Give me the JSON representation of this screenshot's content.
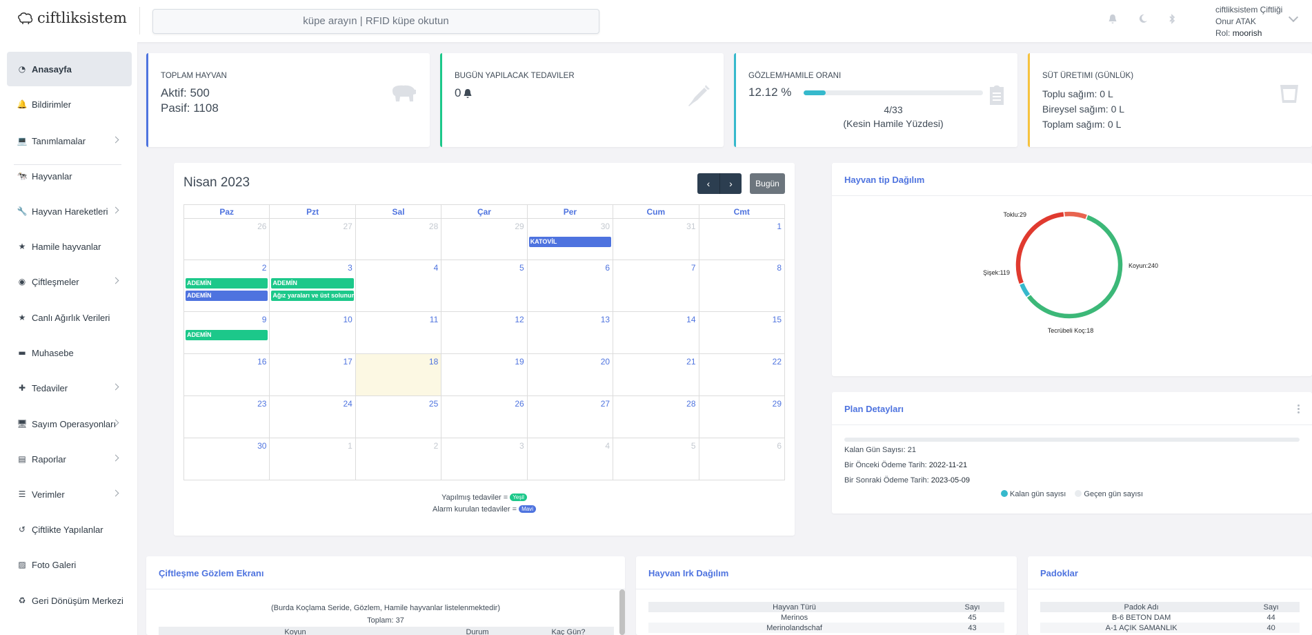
{
  "brand": {
    "name": "ciftliksistem"
  },
  "search": {
    "placeholder": "küpe arayın | RFID küpe okutun"
  },
  "user": {
    "farm": "ciftliksistem Çiftliği",
    "name": "Onur ATAK",
    "role_label": "Rol:",
    "role": "moorish"
  },
  "topbar_icons": [
    "bell-icon",
    "moon-icon",
    "bluetooth-icon"
  ],
  "sidebar": {
    "items": [
      {
        "label": "Anasayfa",
        "icon": "dashboard-icon",
        "active": true
      },
      {
        "label": "Bildirimler",
        "icon": "bell-icon"
      },
      {
        "label": "Tanımlamalar",
        "icon": "laptop-icon",
        "submenu": true
      },
      {
        "label": "Hayvanlar",
        "icon": "cow-icon"
      },
      {
        "label": "Hayvan Hareketleri",
        "icon": "wrench-icon",
        "submenu": true
      },
      {
        "label": "Hamile hayvanlar",
        "icon": "star-icon"
      },
      {
        "label": "Çiftleşmeler",
        "icon": "dot-circle-icon",
        "submenu": true
      },
      {
        "label": "Canlı Ağırlık Verileri",
        "icon": "star-icon"
      },
      {
        "label": "Muhasebe",
        "icon": "wallet-icon"
      },
      {
        "label": "Tedaviler",
        "icon": "medkit-icon",
        "submenu": true
      },
      {
        "label": "Sayım Operasyonları",
        "icon": "monitor-icon",
        "submenu": true
      },
      {
        "label": "Raporlar",
        "icon": "file-icon",
        "submenu": true
      },
      {
        "label": "Verimler",
        "icon": "list-icon",
        "submenu": true
      },
      {
        "label": "Çiftlikte Yapılanlar",
        "icon": "history-icon"
      },
      {
        "label": "Foto Galeri",
        "icon": "images-icon"
      },
      {
        "label": "Geri Dönüşüm Merkezi",
        "icon": "recycle-icon"
      }
    ]
  },
  "stats": {
    "animals": {
      "title": "TOPLAM HAYVAN",
      "active": "Aktif: 500",
      "passive": "Pasif: 1108",
      "icon": "hippo-icon"
    },
    "treatments": {
      "title": "BUGÜN YAPILACAK TEDAVILER",
      "value": "0",
      "icon": "syringe-icon"
    },
    "pregnancy": {
      "title": "GÖZLEM/HAMILE ORANI",
      "percent": "12.12 %",
      "progress": 0.1212,
      "ratio": "4/33",
      "note": "(Kesin Hamile Yüzdesi)",
      "icon": "clipboard-icon"
    },
    "milk": {
      "title": "SÜT ÜRETIMI (GÜNLÜK)",
      "line1": "Toplu sağım: 0 L",
      "line2": "Bireysel sağım: 0 L",
      "line3": "Toplam sağım: 0 L",
      "icon": "cup-icon"
    }
  },
  "calendar": {
    "title": "Nisan 2023",
    "prev": "‹",
    "next": "›",
    "today_label": "Bugün",
    "weekdays": [
      "Paz",
      "Pzt",
      "Sal",
      "Çar",
      "Per",
      "Cum",
      "Cmt"
    ],
    "weeks": [
      [
        {
          "d": "26",
          "dim": true
        },
        {
          "d": "27",
          "dim": true
        },
        {
          "d": "28",
          "dim": true
        },
        {
          "d": "29",
          "dim": true
        },
        {
          "d": "30",
          "dim": true,
          "events": [
            {
              "t": "KATOVİL",
              "c": "b"
            }
          ]
        },
        {
          "d": "31",
          "dim": true
        },
        {
          "d": "1"
        }
      ],
      [
        {
          "d": "2",
          "events": [
            {
              "t": "ADEMİN",
              "c": "g"
            },
            {
              "t": "ADEMİN",
              "c": "b"
            }
          ]
        },
        {
          "d": "3",
          "events": [
            {
              "t": "ADEMİN",
              "c": "g"
            },
            {
              "t": "Ağız yaraları ve üst solunum",
              "c": "g"
            }
          ]
        },
        {
          "d": "4"
        },
        {
          "d": "5"
        },
        {
          "d": "6"
        },
        {
          "d": "7"
        },
        {
          "d": "8"
        }
      ],
      [
        {
          "d": "9",
          "events": [
            {
              "t": "ADEMİN",
              "c": "g"
            }
          ]
        },
        {
          "d": "10"
        },
        {
          "d": "11"
        },
        {
          "d": "12"
        },
        {
          "d": "13"
        },
        {
          "d": "14"
        },
        {
          "d": "15"
        }
      ],
      [
        {
          "d": "16"
        },
        {
          "d": "17"
        },
        {
          "d": "18",
          "today": true
        },
        {
          "d": "19"
        },
        {
          "d": "20"
        },
        {
          "d": "21"
        },
        {
          "d": "22"
        }
      ],
      [
        {
          "d": "23"
        },
        {
          "d": "24"
        },
        {
          "d": "25"
        },
        {
          "d": "26"
        },
        {
          "d": "27"
        },
        {
          "d": "28"
        },
        {
          "d": "29"
        }
      ],
      [
        {
          "d": "30"
        },
        {
          "d": "1",
          "dim": true
        },
        {
          "d": "2",
          "dim": true
        },
        {
          "d": "3",
          "dim": true
        },
        {
          "d": "4",
          "dim": true
        },
        {
          "d": "5",
          "dim": true
        },
        {
          "d": "6",
          "dim": true
        }
      ]
    ],
    "legend1": "Yapılmış tedaviler =",
    "legend1_pill": "Yeşil",
    "legend2": "Alarm kurulan tedaviler =",
    "legend2_pill": "Mavi"
  },
  "chart_data": {
    "type": "pie",
    "title": "Hayvan tip Dağılım",
    "labels": [
      "Koyun",
      "Şişek",
      "Toklu",
      "Tecrübeli Koç"
    ],
    "values": [
      240,
      119,
      29,
      18
    ],
    "label_texts": [
      "Koyun:240",
      "Şişek:119",
      "Toklu:29",
      "Tecrübeli Koç:18"
    ]
  },
  "plan": {
    "title": "Plan Detayları",
    "remaining": "Kalan Gün Sayısı: 21",
    "previous_label": "Bir Önceki Ödeme Tarih:",
    "previous_date": "2022-11-21",
    "next_label": "Bir Sonraki Ödeme Tarih:",
    "next_date": "2023-05-09",
    "legend_left": "Kalan gün sayısı",
    "legend_right": "Geçen gün sayısı",
    "colors": {
      "left": "#36b9cc",
      "right": "#e9ecef"
    }
  },
  "mating": {
    "title": "Çiftleşme Gözlem Ekranı",
    "note": "(Burda Koçlama Seride, Gözlem, Hamile hayvanlar listelenmektedir)",
    "total": "Toplam: 37",
    "columns": [
      "Koyun",
      "Durum",
      "Kaç Gün?"
    ]
  },
  "breeds": {
    "title": "Hayvan Irk Dağılım",
    "columns": [
      "Hayvan Türü",
      "Sayı"
    ],
    "rows": [
      [
        "Merinos",
        "45"
      ],
      [
        "Merinolandschaf",
        "43"
      ]
    ]
  },
  "paddocks": {
    "title": "Padoklar",
    "columns": [
      "Padok Adı",
      "Sayı"
    ],
    "rows": [
      [
        "B-6 BETON DAM",
        "44"
      ],
      [
        "A-1 AÇIK SAMANLIK",
        "40"
      ]
    ]
  },
  "colors": {
    "primary": "#4e73df",
    "success": "#1cc88a",
    "info": "#36b9cc",
    "warning": "#f6c23e",
    "danger": "#e74a3b"
  }
}
